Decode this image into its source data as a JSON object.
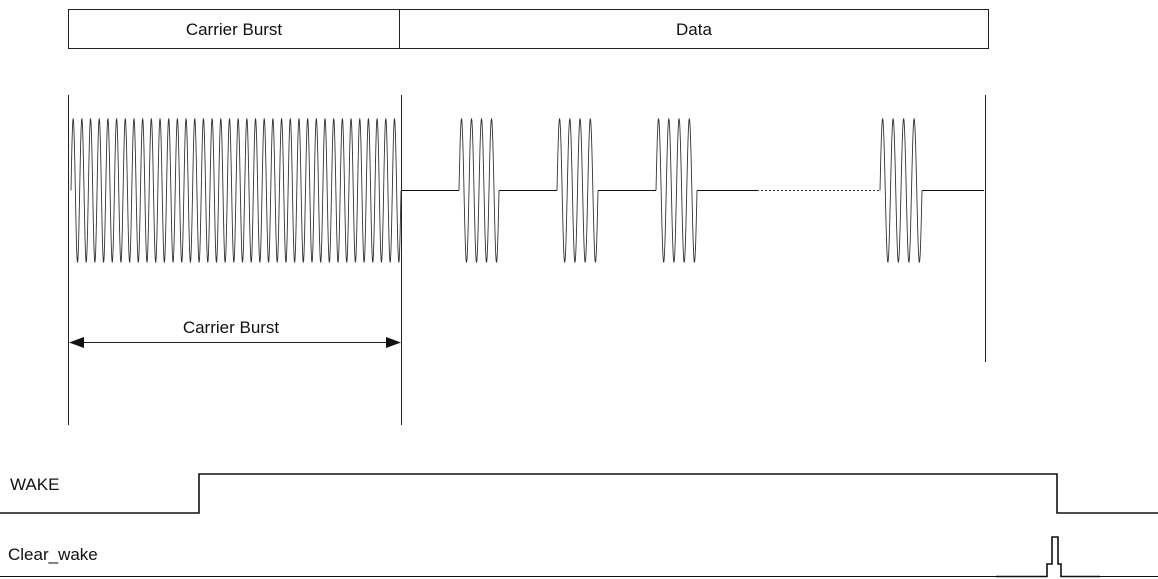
{
  "header": {
    "carrier_burst_label": "Carrier Burst",
    "data_label": "Data"
  },
  "measurement": {
    "carrier_burst_label": "Carrier Burst"
  },
  "signals": [
    {
      "name": "WAKE"
    },
    {
      "name": "Clear_wake"
    }
  ],
  "waveform": {
    "carrier_burst_cycles": 38,
    "data_bursts_cycles": [
      4,
      4,
      4,
      4
    ]
  },
  "colors": {
    "line": "#111111",
    "background": "#ffffff"
  }
}
